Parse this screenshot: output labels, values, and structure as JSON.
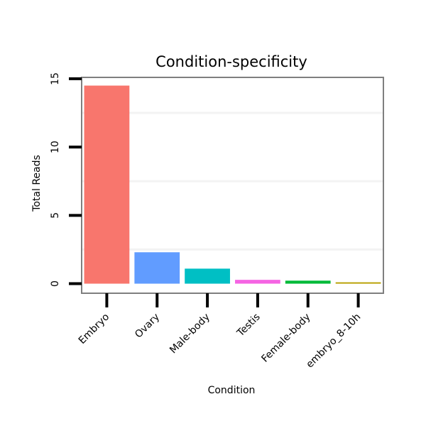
{
  "chart_data": {
    "type": "bar",
    "title": "Condition-specificity",
    "xlabel": "Condition",
    "ylabel": "Total Reads",
    "categories": [
      "Embryo",
      "Ovary",
      "Male-body",
      "Testis",
      "Female-body",
      "embryo_8-10h"
    ],
    "values": [
      14.5,
      2.3,
      1.1,
      0.28,
      0.22,
      0.1
    ],
    "colors": [
      "#F8766D",
      "#619CFF",
      "#00BFC4",
      "#F564E3",
      "#00BA38",
      "#B79F00"
    ],
    "y_ticks": [
      0,
      5,
      10,
      15
    ],
    "ylim": [
      -0.7,
      15.1
    ],
    "grid": true,
    "legend": "none"
  }
}
